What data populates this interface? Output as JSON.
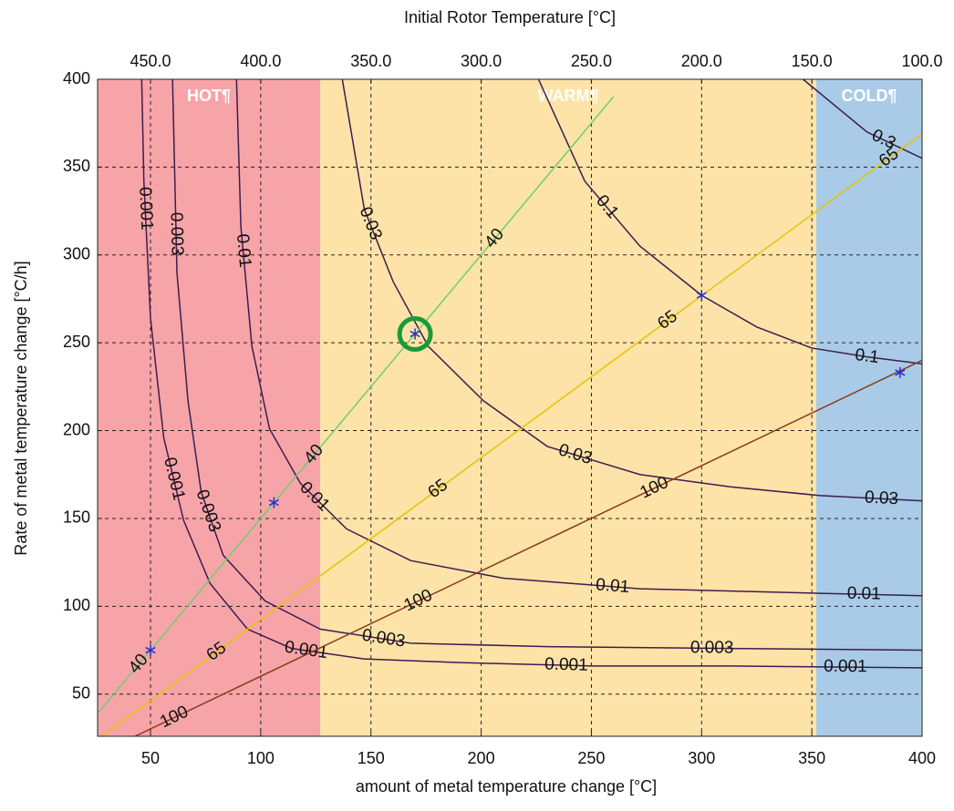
{
  "chart_data": {
    "type": "contour",
    "title": "Initial Rotor Temperature [°C]",
    "x_label": "amount of metal temperature change [°C]",
    "y_label": "Rate of metal temperature change [°C/h]",
    "xlim": [
      26,
      400
    ],
    "ylim": [
      26,
      400
    ],
    "xticks": [
      50,
      100,
      150,
      200,
      250,
      300,
      350,
      400
    ],
    "yticks": [
      50,
      100,
      150,
      200,
      250,
      300,
      350,
      400
    ],
    "x2lim": [
      474,
      100
    ],
    "x2ticks": [
      {
        "value": 450,
        "label": "450.0"
      },
      {
        "value": 400,
        "label": "400.0"
      },
      {
        "value": 350,
        "label": "350.0"
      },
      {
        "value": 300,
        "label": "300.0"
      },
      {
        "value": 250,
        "label": "250.0"
      },
      {
        "value": 200,
        "label": "200.0"
      },
      {
        "value": 150,
        "label": "150.0"
      },
      {
        "value": 100,
        "label": "100.0"
      }
    ],
    "grid": true,
    "regions": [
      {
        "label": "HOT¶",
        "x": [
          26,
          127
        ],
        "color": "#f7a4a8"
      },
      {
        "label": "WARM¶",
        "x": [
          127,
          352
        ],
        "color": "#fde3a8"
      },
      {
        "label": "COLD¶",
        "x": [
          352,
          400
        ],
        "color": "#a9cbe7"
      }
    ],
    "series": [
      {
        "name": "0.001",
        "color": "#3d1d4f",
        "x": [
          46,
          47,
          50,
          56,
          65,
          77,
          94,
          114,
          147,
          189,
          251,
          313,
          400
        ],
        "values": [
          400,
          342,
          264,
          196,
          149,
          113,
          87,
          76,
          70,
          68,
          66,
          66,
          65
        ]
      },
      {
        "name": "0.003",
        "color": "#3d1d4f",
        "x": [
          60,
          62,
          67,
          73,
          83,
          102,
          127,
          168,
          230,
          313,
          400
        ],
        "values": [
          400,
          290,
          217,
          165,
          129,
          103,
          87,
          79,
          77,
          76,
          75
        ]
      },
      {
        "name": "0.01",
        "color": "#3d1d4f",
        "x": [
          89,
          91,
          96,
          104,
          118,
          139,
          168,
          210,
          272,
          334,
          400
        ],
        "values": [
          400,
          316,
          248,
          201,
          170,
          144,
          126,
          116,
          110,
          108,
          106
        ]
      },
      {
        "name": "0.03",
        "color": "#3d1d4f",
        "x": [
          137,
          147,
          160,
          176,
          201,
          230,
          272,
          313,
          354,
          400
        ],
        "values": [
          400,
          326,
          285,
          248,
          217,
          191,
          175,
          168,
          163,
          160
        ]
      },
      {
        "name": "0.1",
        "color": "#3d1d4f",
        "x": [
          226,
          247,
          272,
          300,
          325,
          350,
          375,
          400
        ],
        "values": [
          400,
          342,
          305,
          277,
          259,
          247,
          242,
          238
        ]
      },
      {
        "name": "0.3",
        "color": "#3d1d4f",
        "x": [
          346,
          375,
          400
        ],
        "values": [
          400,
          370,
          355
        ]
      },
      {
        "name": "40",
        "color": "#6ccf6c",
        "x": [
          26,
          260
        ],
        "values": [
          39,
          390
        ]
      },
      {
        "name": "65",
        "color": "#e6c400",
        "x": [
          28,
          400
        ],
        "values": [
          26,
          369
        ]
      },
      {
        "name": "100",
        "color": "#8a3a1c",
        "x": [
          43,
          400
        ],
        "values": [
          26,
          240
        ]
      }
    ],
    "markers": {
      "color": "#2b2bd0",
      "x": [
        50,
        106,
        170,
        300,
        390
      ],
      "values": [
        75,
        159,
        255,
        277,
        233
      ]
    },
    "highlight": {
      "x": 170,
      "value": 255,
      "color": "#1a9a3a"
    }
  }
}
